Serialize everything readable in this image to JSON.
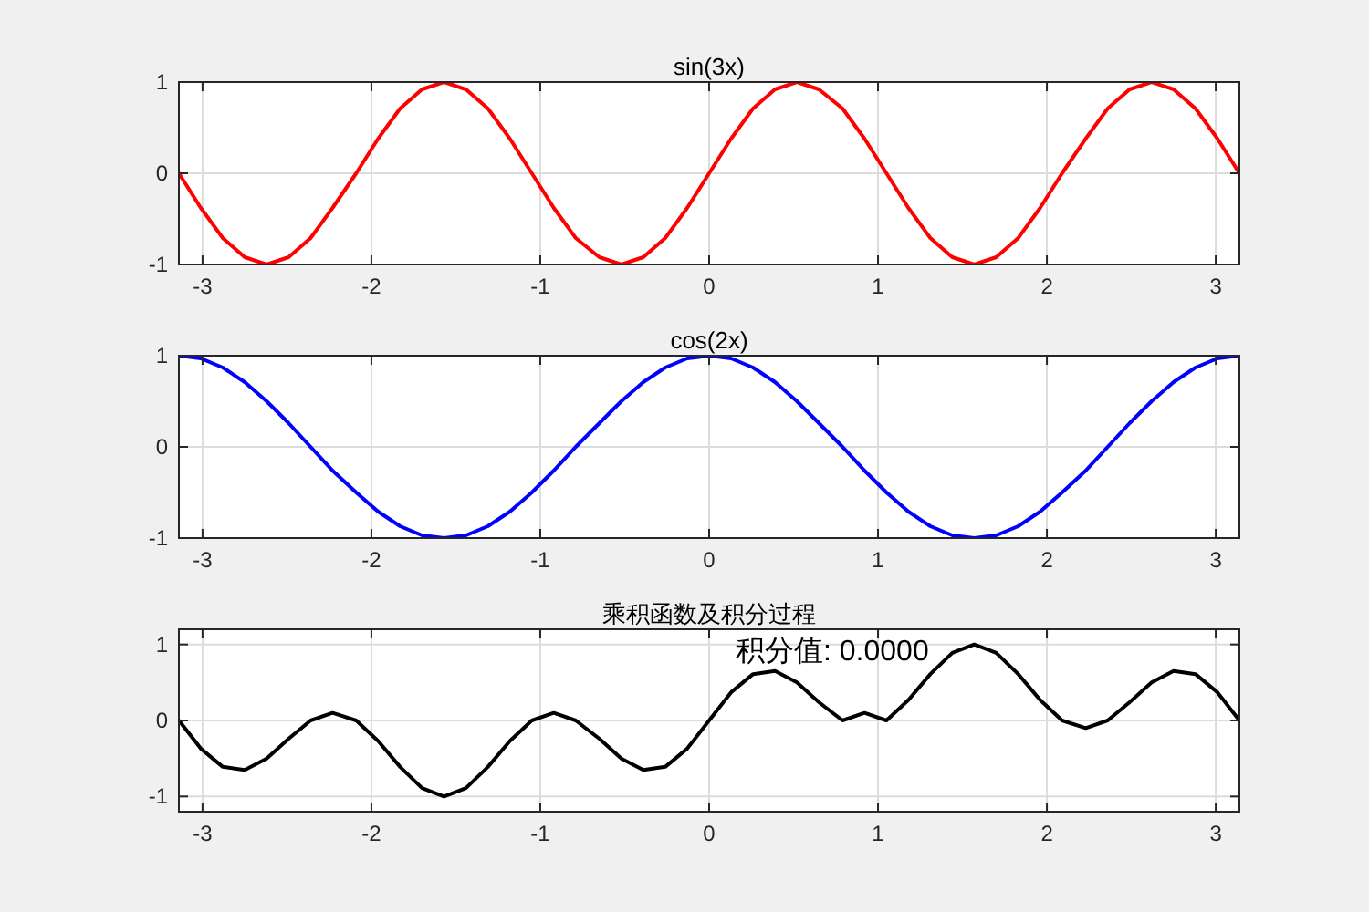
{
  "chart_data": [
    {
      "type": "line",
      "title": "sin(3x)",
      "x": [
        -3.14,
        -3.01,
        -2.88,
        -2.75,
        -2.62,
        -2.49,
        -2.36,
        -2.23,
        -2.09,
        -1.96,
        -1.83,
        -1.7,
        -1.57,
        -1.44,
        -1.31,
        -1.18,
        -1.05,
        -0.92,
        -0.79,
        -0.65,
        -0.52,
        -0.39,
        -0.26,
        -0.13,
        0,
        0.13,
        0.26,
        0.39,
        0.52,
        0.65,
        0.79,
        0.92,
        1.05,
        1.18,
        1.31,
        1.44,
        1.57,
        1.7,
        1.83,
        1.96,
        2.09,
        2.23,
        2.36,
        2.49,
        2.62,
        2.75,
        2.88,
        3.01,
        3.14
      ],
      "series": [
        {
          "color": "#ff0000",
          "values": [
            0,
            -0.38,
            -0.71,
            -0.92,
            -1,
            -0.92,
            -0.71,
            -0.38,
            0,
            0.38,
            0.71,
            0.92,
            1,
            0.92,
            0.71,
            0.38,
            0,
            -0.38,
            -0.71,
            -0.92,
            -1,
            -0.92,
            -0.71,
            -0.38,
            0,
            0.38,
            0.71,
            0.92,
            1,
            0.92,
            0.71,
            0.38,
            0,
            -0.38,
            -0.71,
            -0.92,
            -1,
            -0.92,
            -0.71,
            -0.38,
            0,
            0.38,
            0.71,
            0.92,
            1,
            0.92,
            0.71,
            0.38,
            0
          ]
        }
      ],
      "xlim": [
        -3.14,
        3.14
      ],
      "xticks": [
        -3,
        -2,
        -1,
        0,
        1,
        2,
        3
      ],
      "ylim": [
        -1,
        1
      ],
      "yticks": [
        -1,
        0,
        1
      ],
      "grid": true
    },
    {
      "type": "line",
      "title": "cos(2x)",
      "x": [
        -3.14,
        -3.01,
        -2.88,
        -2.75,
        -2.62,
        -2.49,
        -2.36,
        -2.23,
        -2.09,
        -1.96,
        -1.83,
        -1.7,
        -1.57,
        -1.44,
        -1.31,
        -1.18,
        -1.05,
        -0.92,
        -0.79,
        -0.65,
        -0.52,
        -0.39,
        -0.26,
        -0.13,
        0,
        0.13,
        0.26,
        0.39,
        0.52,
        0.65,
        0.79,
        0.92,
        1.05,
        1.18,
        1.31,
        1.44,
        1.57,
        1.7,
        1.83,
        1.96,
        2.09,
        2.23,
        2.36,
        2.49,
        2.62,
        2.75,
        2.88,
        3.01,
        3.14
      ],
      "series": [
        {
          "color": "#0000ff",
          "values": [
            1,
            0.97,
            0.87,
            0.71,
            0.5,
            0.26,
            0,
            -0.26,
            -0.5,
            -0.71,
            -0.87,
            -0.97,
            -1,
            -0.97,
            -0.87,
            -0.71,
            -0.5,
            -0.26,
            0,
            0.26,
            0.5,
            0.71,
            0.87,
            0.97,
            1,
            0.97,
            0.87,
            0.71,
            0.5,
            0.26,
            0,
            -0.26,
            -0.5,
            -0.71,
            -0.87,
            -0.97,
            -1,
            -0.97,
            -0.87,
            -0.71,
            -0.5,
            -0.26,
            0,
            0.26,
            0.5,
            0.71,
            0.87,
            0.97,
            1
          ]
        }
      ],
      "xlim": [
        -3.14,
        3.14
      ],
      "xticks": [
        -3,
        -2,
        -1,
        0,
        1,
        2,
        3
      ],
      "ylim": [
        -1,
        1
      ],
      "yticks": [
        -1,
        0,
        1
      ],
      "grid": true
    },
    {
      "type": "line",
      "title": "乘积函数及积分过程",
      "annotations": [
        "积分值: 0.0000"
      ],
      "x": [
        -3.14,
        -3.01,
        -2.88,
        -2.75,
        -2.62,
        -2.49,
        -2.36,
        -2.23,
        -2.09,
        -1.96,
        -1.83,
        -1.7,
        -1.57,
        -1.44,
        -1.31,
        -1.18,
        -1.05,
        -0.92,
        -0.79,
        -0.65,
        -0.52,
        -0.39,
        -0.26,
        -0.13,
        0,
        0.13,
        0.26,
        0.39,
        0.52,
        0.65,
        0.79,
        0.92,
        1.05,
        1.18,
        1.31,
        1.44,
        1.57,
        1.7,
        1.83,
        1.96,
        2.09,
        2.23,
        2.36,
        2.49,
        2.62,
        2.75,
        2.88,
        3.01,
        3.14
      ],
      "series": [
        {
          "color": "#000000",
          "values": [
            0,
            -0.37,
            -0.61,
            -0.65,
            -0.5,
            -0.24,
            0,
            0.1,
            0,
            -0.27,
            -0.61,
            -0.89,
            -1,
            -0.89,
            -0.61,
            -0.27,
            0,
            0.1,
            0,
            -0.24,
            -0.5,
            -0.65,
            -0.61,
            -0.37,
            0,
            0.37,
            0.61,
            0.65,
            0.5,
            0.24,
            0,
            0.1,
            0,
            0.27,
            0.61,
            0.89,
            1,
            0.89,
            0.61,
            0.27,
            0,
            -0.1,
            0,
            0.24,
            0.5,
            0.65,
            0.61,
            0.37,
            0
          ]
        }
      ],
      "xlim": [
        -3.14,
        3.14
      ],
      "xticks": [
        -3,
        -2,
        -1,
        0,
        1,
        2,
        3
      ],
      "ylim": [
        -1.2,
        1.2
      ],
      "yticks": [
        -1,
        0,
        1
      ],
      "grid": true
    }
  ]
}
